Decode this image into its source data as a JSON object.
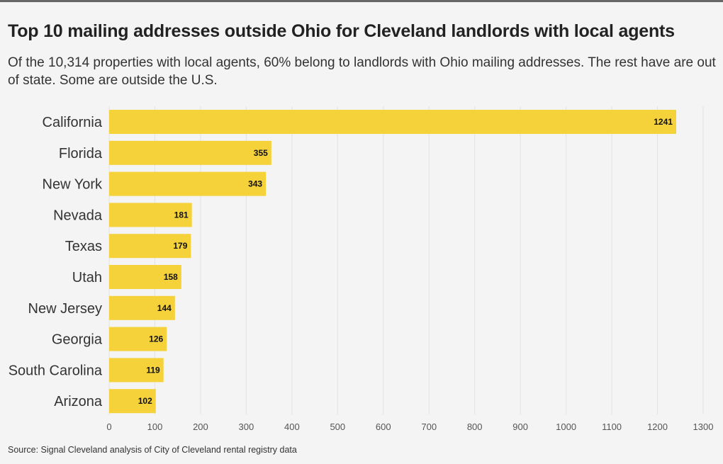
{
  "title": "Top 10 mailing addresses outside Ohio for Cleveland landlords with local agents",
  "subtitle": "Of the 10,314 properties with local agents, 60% belong to landlords with Ohio mailing addresses. The rest have are out of state. Some are outside the U.S.",
  "source": "Source: Signal Cleveland analysis of City of Cleveland rental registry data",
  "colors": {
    "bar": "#f5d13a",
    "grid": "#e2e2e2",
    "label": "#333333",
    "value_label": "#111111"
  },
  "chart_data": {
    "type": "bar",
    "orientation": "horizontal",
    "categories": [
      "California",
      "Florida",
      "New York",
      "Nevada",
      "Texas",
      "Utah",
      "New Jersey",
      "Georgia",
      "South Carolina",
      "Arizona"
    ],
    "values": [
      1241,
      355,
      343,
      181,
      179,
      158,
      144,
      126,
      119,
      102
    ],
    "xlim": [
      0,
      1300
    ],
    "xticks": [
      0,
      100,
      200,
      300,
      400,
      500,
      600,
      700,
      800,
      900,
      1000,
      1100,
      1200,
      1300
    ],
    "xlabel": "",
    "ylabel": "",
    "grid": true,
    "data_labels": true
  }
}
